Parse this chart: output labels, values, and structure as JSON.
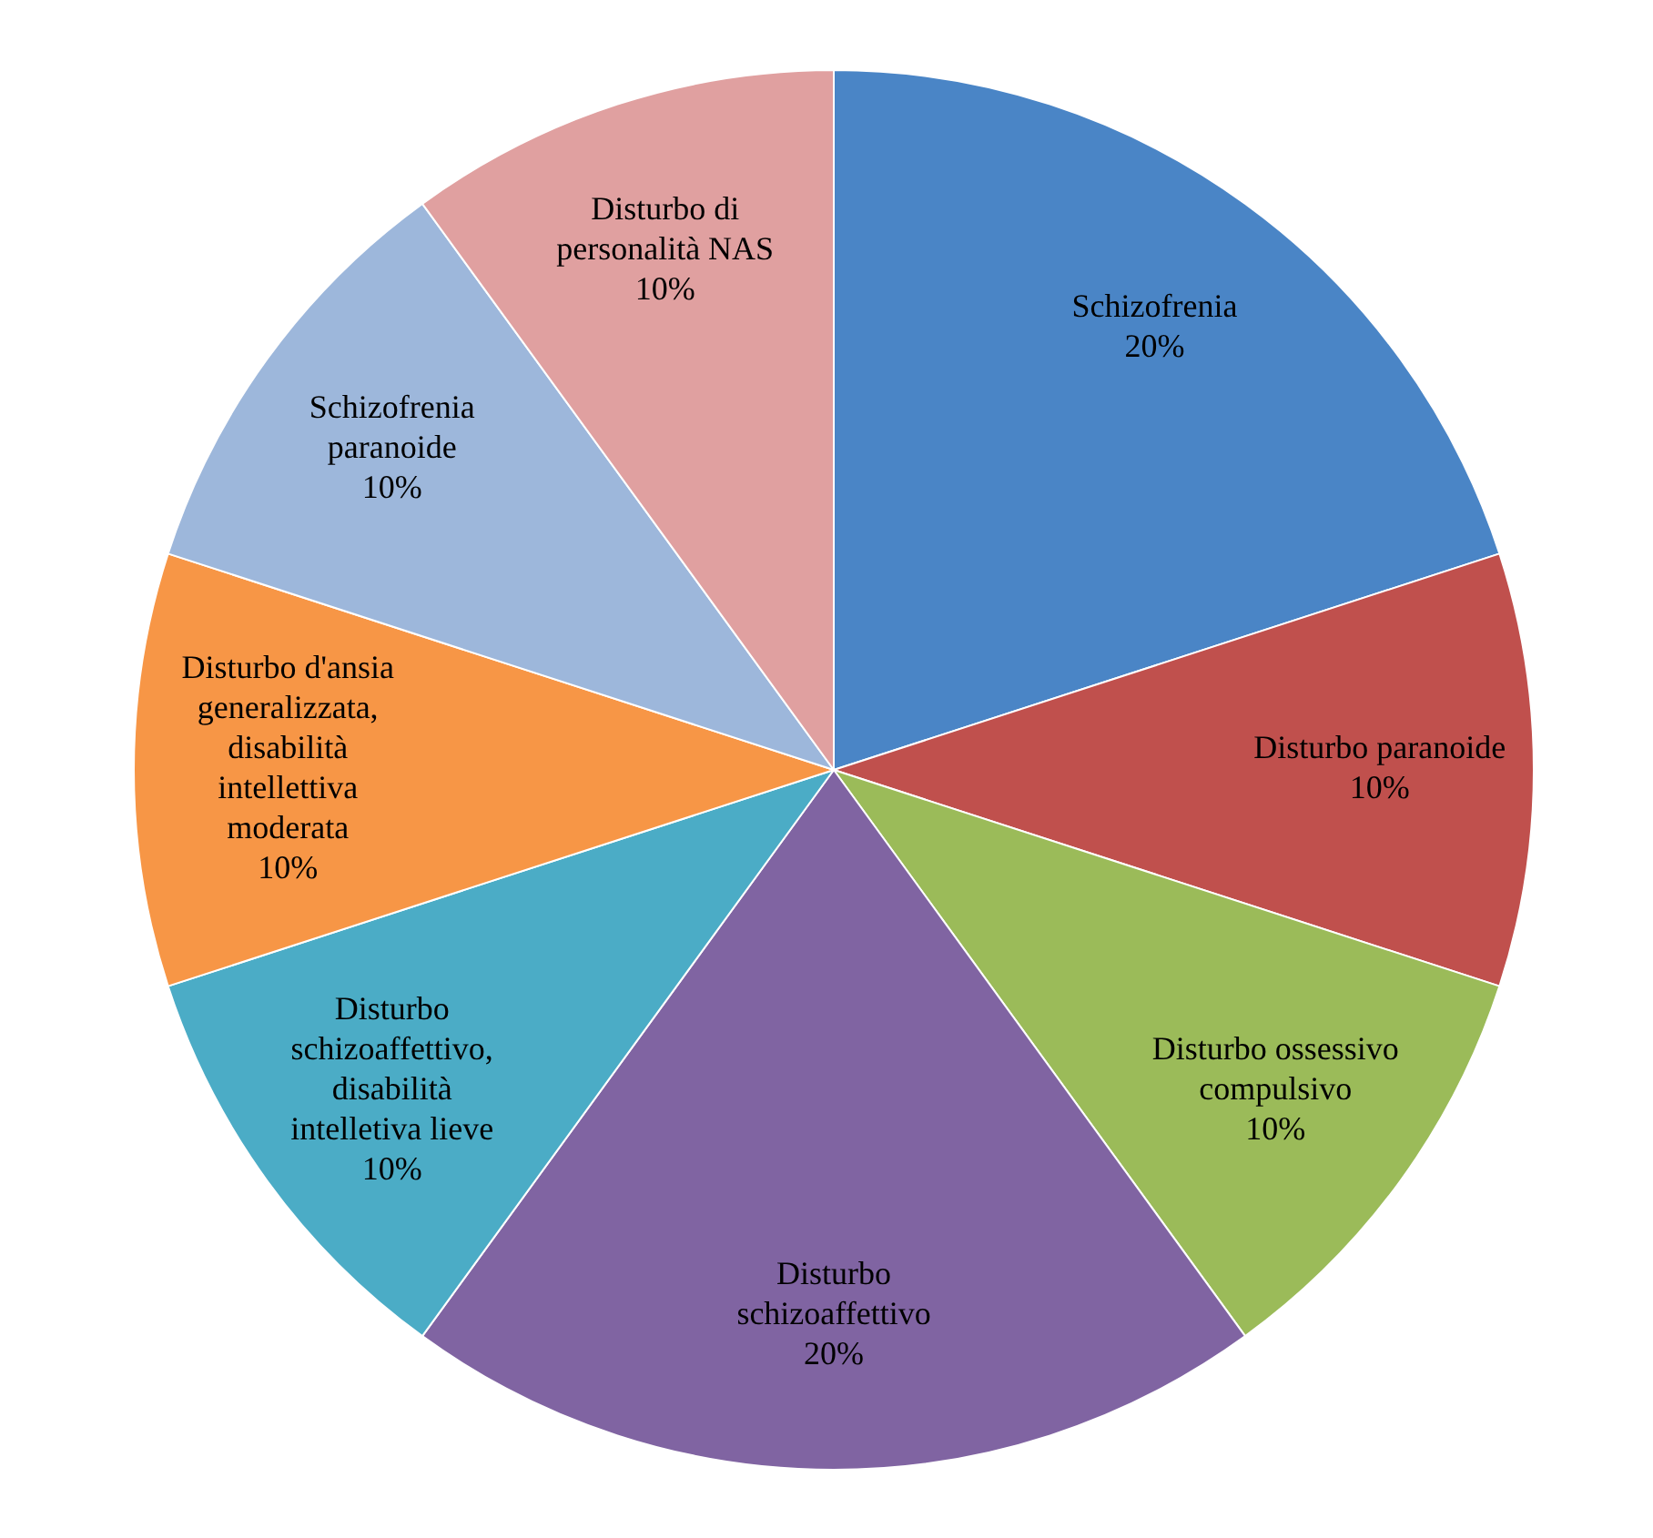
{
  "chart_data": {
    "type": "pie",
    "categories": [
      "Schizofrenia",
      "Disturbo paranoide",
      "Disturbo ossessivo compulsivo",
      "Disturbo schizoaffettivo",
      "Disturbo schizoaffettivo, disabilità intelletiva lieve",
      "Disturbo d'ansia generalizzata, disabilità intellettiva moderata",
      "Schizofrenia paranoide",
      "Disturbo di personalità NAS"
    ],
    "values": [
      20,
      10,
      10,
      20,
      10,
      10,
      10,
      10
    ],
    "value_labels": [
      "20%",
      "10%",
      "10%",
      "20%",
      "10%",
      "10%",
      "10%",
      "10%"
    ],
    "colors": [
      "#4a85c6",
      "#c0504d",
      "#9bbb59",
      "#8064a2",
      "#4bacc6",
      "#f79646",
      "#9db7db",
      "#e0a0a0"
    ],
    "legend": false
  }
}
